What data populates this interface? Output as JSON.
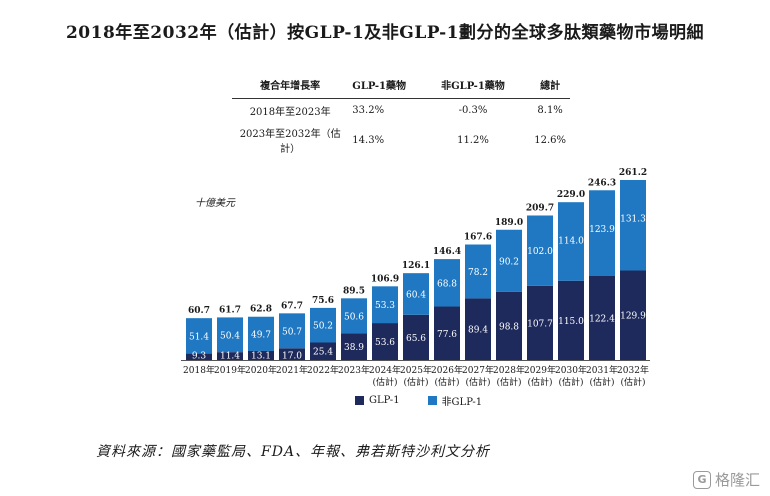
{
  "title": "2018年至2032年（估計）按GLP-1及非GLP-1劃分的全球多肽類藥物市場明細",
  "cagr_table": {
    "headers": [
      "複合年增長率",
      "GLP-1藥物",
      "非GLP-1藥物",
      "總計"
    ],
    "rows": [
      [
        "2018年至2023年",
        "33.2%",
        "-0.3%",
        "8.1%"
      ],
      [
        "2023年至2032年（估計）",
        "14.3%",
        "11.2%",
        "12.6%"
      ]
    ]
  },
  "unit_label": "十億美元",
  "legend": {
    "glp1": "GLP-1",
    "nonglp1": "非GLP-1"
  },
  "colors": {
    "glp1": "#1f2a5c",
    "nonglp1": "#1f78c1"
  },
  "source": "資料來源：國家藥監局、FDA、年報、弗若斯特沙利文分析",
  "watermark": "格隆汇",
  "watermark_logo": "G",
  "chart_data": {
    "type": "bar",
    "stacked": true,
    "categories": [
      "2018年",
      "2019年",
      "2020年",
      "2021年",
      "2022年",
      "2023年",
      "2024年",
      "2025年",
      "2026年",
      "2027年",
      "2028年",
      "2029年",
      "2030年",
      "2031年",
      "2032年"
    ],
    "category_sublabels": [
      "",
      "",
      "",
      "",
      "",
      "",
      "(估計)",
      "(估計)",
      "(估計)",
      "(估計)",
      "(估計)",
      "(估計)",
      "(估計)",
      "(估計)",
      "(估計)"
    ],
    "series": [
      {
        "name": "GLP-1",
        "values": [
          9.3,
          11.4,
          13.1,
          17.0,
          25.4,
          38.9,
          53.6,
          65.6,
          77.6,
          89.4,
          98.8,
          107.7,
          115.0,
          122.4,
          129.9
        ]
      },
      {
        "name": "非GLP-1",
        "values": [
          51.4,
          50.4,
          49.7,
          50.7,
          50.2,
          50.6,
          53.3,
          60.4,
          68.8,
          78.2,
          90.2,
          102.0,
          114.0,
          123.9,
          131.3
        ]
      }
    ],
    "totals": [
      60.7,
      61.7,
      62.8,
      67.7,
      75.6,
      89.5,
      106.9,
      126.1,
      146.4,
      167.6,
      189.0,
      209.7,
      229.0,
      246.3,
      261.2
    ],
    "ylabel": "十億美元",
    "ylim": [
      0,
      261.2
    ]
  }
}
